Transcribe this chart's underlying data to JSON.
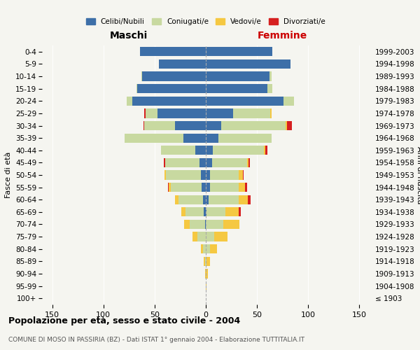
{
  "age_groups": [
    "100+",
    "95-99",
    "90-94",
    "85-89",
    "80-84",
    "75-79",
    "70-74",
    "65-69",
    "60-64",
    "55-59",
    "50-54",
    "45-49",
    "40-44",
    "35-39",
    "30-34",
    "25-29",
    "20-24",
    "15-19",
    "10-14",
    "5-9",
    "0-4"
  ],
  "birth_years": [
    "≤ 1903",
    "1904-1908",
    "1909-1913",
    "1914-1918",
    "1919-1923",
    "1924-1928",
    "1929-1933",
    "1934-1938",
    "1939-1943",
    "1944-1948",
    "1949-1953",
    "1954-1958",
    "1959-1963",
    "1964-1968",
    "1969-1973",
    "1974-1978",
    "1979-1983",
    "1984-1988",
    "1989-1993",
    "1994-1998",
    "1999-2003"
  ],
  "maschi": {
    "celibi": [
      0,
      0,
      0,
      0,
      0,
      0,
      1,
      2,
      3,
      4,
      5,
      6,
      10,
      22,
      30,
      47,
      72,
      67,
      62,
      46,
      64
    ],
    "coniugati": [
      0,
      0,
      0,
      1,
      3,
      8,
      15,
      18,
      24,
      30,
      34,
      34,
      34,
      57,
      30,
      12,
      5,
      1,
      1,
      0,
      0
    ],
    "vedovi": [
      0,
      0,
      1,
      1,
      2,
      5,
      5,
      4,
      3,
      2,
      1,
      0,
      0,
      0,
      0,
      0,
      0,
      0,
      0,
      0,
      0
    ],
    "divorziati": [
      0,
      0,
      0,
      0,
      0,
      0,
      0,
      0,
      0,
      1,
      0,
      1,
      0,
      0,
      1,
      1,
      0,
      0,
      0,
      0,
      0
    ]
  },
  "femmine": {
    "nubili": [
      0,
      0,
      0,
      0,
      0,
      0,
      0,
      1,
      3,
      4,
      4,
      6,
      7,
      12,
      15,
      27,
      76,
      60,
      62,
      83,
      65
    ],
    "coniugate": [
      0,
      0,
      0,
      1,
      4,
      8,
      17,
      18,
      29,
      28,
      28,
      34,
      50,
      52,
      63,
      36,
      10,
      5,
      2,
      0,
      0
    ],
    "vedove": [
      0,
      1,
      2,
      3,
      7,
      13,
      16,
      13,
      9,
      6,
      4,
      2,
      1,
      0,
      1,
      1,
      0,
      0,
      0,
      0,
      0
    ],
    "divorziate": [
      0,
      0,
      0,
      0,
      0,
      0,
      0,
      2,
      3,
      2,
      1,
      1,
      2,
      0,
      5,
      0,
      0,
      0,
      0,
      0,
      0
    ]
  },
  "colors": {
    "celibi_nubili": "#3d6fa8",
    "coniugati": "#c8d9a0",
    "vedovi": "#f5c842",
    "divorziati": "#d62020"
  },
  "xlim": 160,
  "title": "Popolazione per età, sesso e stato civile - 2004",
  "subtitle": "COMUNE DI MOSO IN PASSIRIA (BZ) - Dati ISTAT 1° gennaio 2004 - Elaborazione TUTTITALIA.IT",
  "ylabel_left": "Fasce di età",
  "ylabel_right": "Anni di nascita",
  "header_maschi": "Maschi",
  "header_femmine": "Femmine",
  "legend_labels": [
    "Celibi/Nubili",
    "Coniugati/e",
    "Vedovi/e",
    "Divorziati/e"
  ],
  "bg_color": "#f5f5f0"
}
